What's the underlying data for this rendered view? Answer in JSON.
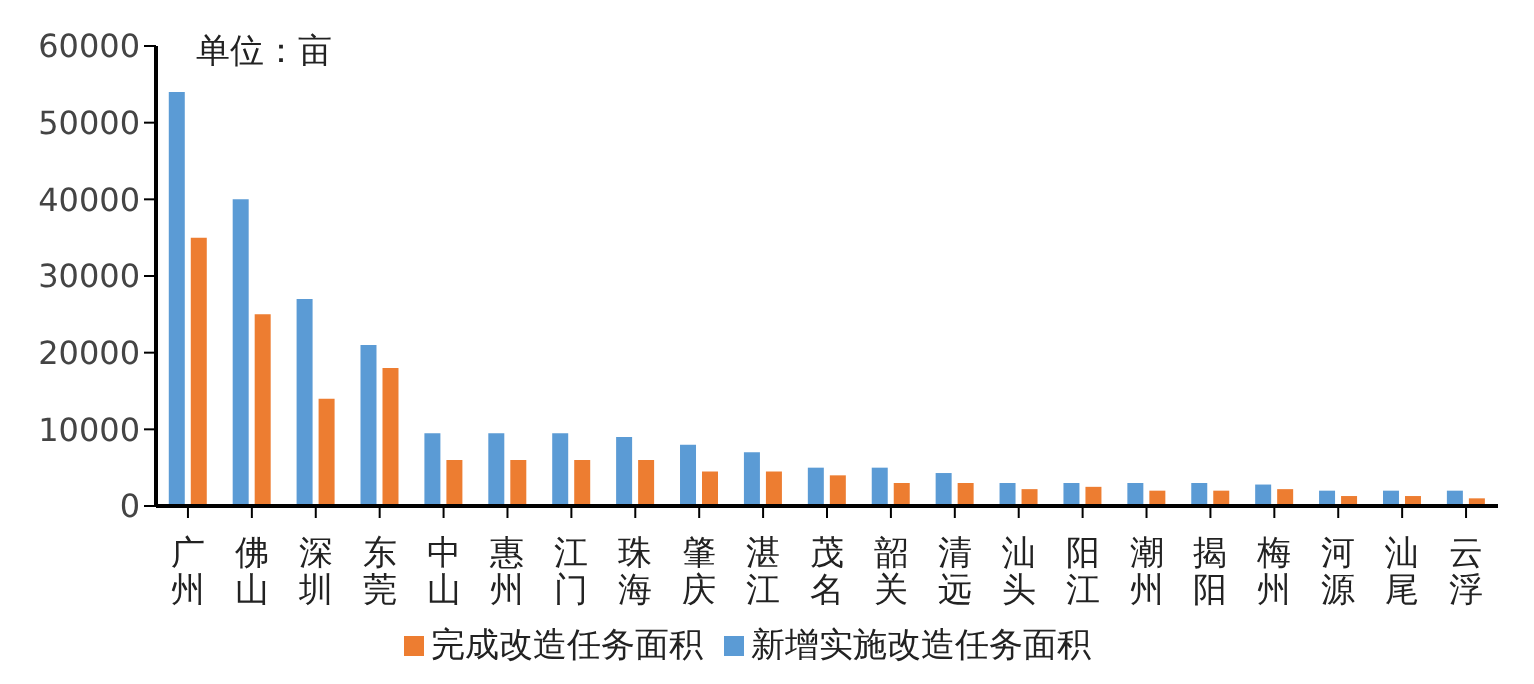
{
  "chart_data": {
    "type": "bar",
    "annotations": [
      "单位：亩"
    ],
    "categories": [
      "广州",
      "佛山",
      "深圳",
      "东莞",
      "中山",
      "惠州",
      "江门",
      "珠海",
      "肇庆",
      "湛江",
      "茂名",
      "韶关",
      "清远",
      "汕头",
      "阳江",
      "潮州",
      "揭阳",
      "梅州",
      "河源",
      "汕尾",
      "云浮"
    ],
    "series": [
      {
        "name": "新增实施改造任务面积",
        "color": "#5b9bd5",
        "values": [
          54000,
          40000,
          27000,
          21000,
          9500,
          9500,
          9500,
          9000,
          8000,
          7000,
          5000,
          5000,
          4300,
          3000,
          3000,
          3000,
          3000,
          2800,
          2000,
          2000,
          2000
        ]
      },
      {
        "name": "完成改造任务面积",
        "color": "#ed7d31",
        "values": [
          35000,
          25000,
          14000,
          18000,
          6000,
          6000,
          6000,
          6000,
          4500,
          4500,
          4000,
          3000,
          3000,
          2200,
          2500,
          2000,
          2000,
          2200,
          1300,
          1300,
          1000
        ]
      }
    ],
    "ylim": [
      0,
      60000
    ],
    "yticks": [
      0,
      10000,
      20000,
      30000,
      40000,
      50000,
      60000
    ],
    "grid": false,
    "legend": "bottom"
  }
}
